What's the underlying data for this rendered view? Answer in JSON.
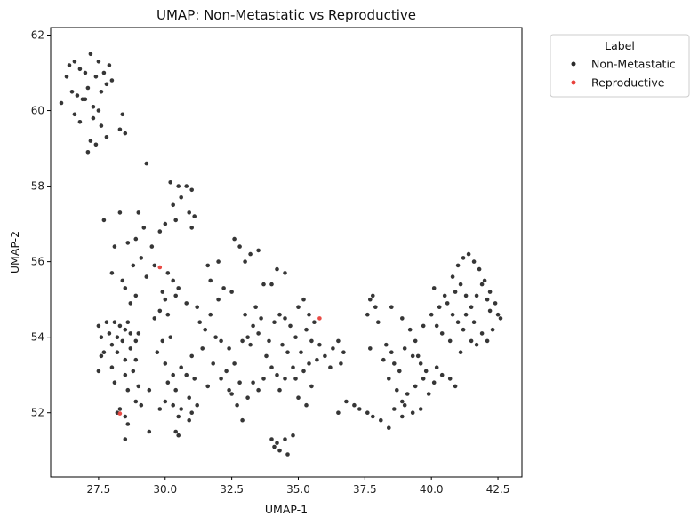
{
  "chart_data": {
    "type": "scatter",
    "title": "UMAP: Non-Metastatic vs Reproductive",
    "xlabel": "UMAP-1",
    "ylabel": "UMAP-2",
    "xlim": [
      25.7,
      43.4
    ],
    "ylim": [
      50.3,
      62.2
    ],
    "xticks": [
      27.5,
      30.0,
      32.5,
      35.0,
      37.5,
      40.0,
      42.5
    ],
    "xtick_labels": [
      "27.5",
      "30.0",
      "32.5",
      "35.0",
      "37.5",
      "40.0",
      "42.5"
    ],
    "yticks": [
      52,
      54,
      56,
      58,
      60,
      62
    ],
    "ytick_labels": [
      "52",
      "54",
      "56",
      "58",
      "60",
      "62"
    ],
    "grid": false,
    "legend": {
      "title": "Label",
      "placement": "outside-top-right",
      "entries": [
        "Non-Metastatic",
        "Reproductive"
      ]
    },
    "series": [
      {
        "name": "Non-Metastatic",
        "color": "#2b2b2b",
        "points": [
          [
            26.1,
            60.2
          ],
          [
            26.3,
            60.9
          ],
          [
            26.4,
            61.2
          ],
          [
            26.5,
            60.5
          ],
          [
            26.6,
            61.3
          ],
          [
            26.7,
            60.4
          ],
          [
            26.8,
            61.1
          ],
          [
            26.9,
            60.3
          ],
          [
            27.0,
            61.0
          ],
          [
            27.1,
            60.6
          ],
          [
            27.2,
            61.5
          ],
          [
            27.3,
            60.1
          ],
          [
            27.4,
            60.9
          ],
          [
            27.5,
            61.3
          ],
          [
            27.6,
            60.5
          ],
          [
            27.7,
            61.0
          ],
          [
            27.8,
            60.7
          ],
          [
            27.9,
            61.2
          ],
          [
            28.0,
            60.8
          ],
          [
            27.5,
            60.0
          ],
          [
            27.3,
            59.8
          ],
          [
            26.6,
            59.9
          ],
          [
            26.8,
            59.7
          ],
          [
            27.2,
            59.2
          ],
          [
            27.4,
            59.1
          ],
          [
            27.1,
            58.9
          ],
          [
            27.8,
            59.3
          ],
          [
            28.3,
            59.5
          ],
          [
            28.4,
            59.9
          ],
          [
            28.5,
            59.4
          ],
          [
            27.6,
            59.6
          ],
          [
            27.0,
            60.3
          ],
          [
            29.3,
            58.6
          ],
          [
            30.2,
            58.1
          ],
          [
            30.5,
            58.0
          ],
          [
            30.8,
            58.0
          ],
          [
            31.0,
            57.9
          ],
          [
            30.6,
            57.7
          ],
          [
            30.3,
            57.5
          ],
          [
            30.9,
            57.3
          ],
          [
            30.4,
            57.1
          ],
          [
            31.1,
            57.2
          ],
          [
            31.0,
            56.9
          ],
          [
            30.0,
            57.0
          ],
          [
            29.8,
            56.8
          ],
          [
            29.2,
            56.9
          ],
          [
            29.0,
            57.3
          ],
          [
            28.3,
            57.3
          ],
          [
            27.7,
            57.1
          ],
          [
            28.9,
            56.6
          ],
          [
            29.1,
            56.1
          ],
          [
            29.3,
            55.6
          ],
          [
            28.6,
            56.5
          ],
          [
            28.8,
            55.9
          ],
          [
            28.4,
            55.5
          ],
          [
            28.1,
            56.4
          ],
          [
            28.0,
            55.7
          ],
          [
            28.9,
            55.1
          ],
          [
            28.7,
            54.9
          ],
          [
            28.5,
            55.3
          ],
          [
            29.5,
            56.4
          ],
          [
            29.6,
            55.9
          ],
          [
            30.1,
            55.7
          ],
          [
            30.3,
            55.5
          ],
          [
            29.9,
            55.2
          ],
          [
            30.5,
            55.3
          ],
          [
            30.0,
            55.0
          ],
          [
            30.4,
            55.1
          ],
          [
            30.8,
            54.9
          ],
          [
            31.2,
            54.8
          ],
          [
            32.0,
            56.0
          ],
          [
            31.6,
            55.9
          ],
          [
            32.6,
            56.6
          ],
          [
            32.8,
            56.4
          ],
          [
            33.2,
            56.2
          ],
          [
            33.5,
            56.3
          ],
          [
            33.0,
            56.0
          ],
          [
            34.2,
            55.8
          ],
          [
            34.5,
            55.7
          ],
          [
            34.0,
            55.4
          ],
          [
            33.7,
            55.4
          ],
          [
            32.2,
            55.3
          ],
          [
            32.5,
            55.2
          ],
          [
            32.0,
            55.0
          ],
          [
            31.7,
            55.5
          ],
          [
            27.5,
            54.3
          ],
          [
            27.8,
            54.4
          ],
          [
            28.1,
            54.4
          ],
          [
            28.3,
            54.3
          ],
          [
            28.5,
            54.2
          ],
          [
            27.9,
            54.1
          ],
          [
            28.2,
            54.0
          ],
          [
            27.6,
            54.0
          ],
          [
            28.6,
            54.4
          ],
          [
            28.0,
            53.8
          ],
          [
            28.4,
            53.9
          ],
          [
            27.7,
            53.6
          ],
          [
            28.2,
            53.6
          ],
          [
            28.7,
            53.7
          ],
          [
            28.9,
            53.4
          ],
          [
            28.5,
            53.4
          ],
          [
            28.0,
            53.2
          ],
          [
            27.6,
            53.5
          ],
          [
            28.8,
            53.1
          ],
          [
            27.5,
            53.1
          ],
          [
            28.5,
            53.0
          ],
          [
            28.1,
            52.8
          ],
          [
            28.6,
            52.6
          ],
          [
            29.0,
            52.7
          ],
          [
            29.4,
            52.6
          ],
          [
            28.9,
            52.3
          ],
          [
            29.1,
            52.2
          ],
          [
            28.5,
            51.9
          ],
          [
            28.3,
            52.1
          ],
          [
            28.2,
            52.0
          ],
          [
            28.6,
            51.7
          ],
          [
            28.5,
            51.3
          ],
          [
            29.4,
            51.5
          ],
          [
            28.9,
            53.9
          ],
          [
            29.0,
            54.1
          ],
          [
            28.7,
            54.1
          ],
          [
            29.7,
            53.6
          ],
          [
            29.9,
            53.9
          ],
          [
            30.2,
            54.0
          ],
          [
            30.0,
            53.3
          ],
          [
            30.3,
            53.0
          ],
          [
            30.6,
            53.2
          ],
          [
            30.1,
            52.8
          ],
          [
            30.8,
            53.0
          ],
          [
            31.1,
            52.9
          ],
          [
            30.4,
            52.6
          ],
          [
            30.9,
            52.4
          ],
          [
            31.2,
            52.2
          ],
          [
            30.6,
            52.1
          ],
          [
            30.3,
            52.2
          ],
          [
            30.0,
            52.3
          ],
          [
            29.8,
            52.1
          ],
          [
            30.5,
            51.9
          ],
          [
            30.9,
            51.8
          ],
          [
            31.0,
            52.0
          ],
          [
            30.4,
            51.5
          ],
          [
            30.5,
            51.4
          ],
          [
            29.6,
            54.5
          ],
          [
            29.8,
            54.7
          ],
          [
            30.1,
            54.6
          ],
          [
            31.3,
            54.4
          ],
          [
            31.5,
            54.2
          ],
          [
            31.0,
            53.5
          ],
          [
            31.4,
            53.7
          ],
          [
            31.7,
            54.6
          ],
          [
            31.9,
            54.0
          ],
          [
            32.1,
            53.9
          ],
          [
            32.4,
            53.7
          ],
          [
            31.8,
            53.3
          ],
          [
            32.3,
            53.1
          ],
          [
            32.6,
            53.3
          ],
          [
            32.1,
            52.9
          ],
          [
            32.8,
            52.8
          ],
          [
            32.5,
            52.5
          ],
          [
            32.7,
            52.2
          ],
          [
            32.4,
            52.6
          ],
          [
            31.6,
            52.7
          ],
          [
            32.9,
            53.9
          ],
          [
            33.1,
            54.0
          ],
          [
            33.3,
            54.3
          ],
          [
            33.0,
            54.6
          ],
          [
            33.4,
            54.8
          ],
          [
            33.6,
            54.5
          ],
          [
            33.5,
            54.1
          ],
          [
            33.2,
            53.8
          ],
          [
            33.8,
            53.5
          ],
          [
            33.9,
            53.9
          ],
          [
            34.1,
            54.4
          ],
          [
            34.3,
            54.6
          ],
          [
            34.5,
            54.5
          ],
          [
            34.7,
            54.3
          ],
          [
            34.9,
            54.0
          ],
          [
            34.4,
            53.8
          ],
          [
            34.6,
            53.6
          ],
          [
            34.0,
            53.2
          ],
          [
            34.2,
            53.0
          ],
          [
            34.8,
            53.2
          ],
          [
            34.5,
            52.9
          ],
          [
            34.3,
            52.6
          ],
          [
            33.7,
            52.9
          ],
          [
            33.5,
            52.6
          ],
          [
            33.3,
            52.8
          ],
          [
            33.1,
            52.4
          ],
          [
            32.9,
            51.8
          ],
          [
            34.0,
            51.3
          ],
          [
            34.2,
            51.2
          ],
          [
            34.5,
            51.3
          ],
          [
            34.8,
            51.4
          ],
          [
            34.3,
            51.0
          ],
          [
            34.6,
            50.9
          ],
          [
            34.1,
            51.1
          ],
          [
            35.2,
            55.0
          ],
          [
            35.0,
            54.8
          ],
          [
            35.4,
            54.6
          ],
          [
            35.6,
            54.4
          ],
          [
            35.3,
            54.2
          ],
          [
            35.5,
            53.9
          ],
          [
            35.8,
            53.8
          ],
          [
            35.1,
            53.6
          ],
          [
            35.4,
            53.3
          ],
          [
            35.7,
            53.4
          ],
          [
            35.2,
            53.1
          ],
          [
            34.9,
            52.9
          ],
          [
            35.5,
            52.7
          ],
          [
            35.0,
            52.4
          ],
          [
            35.3,
            52.2
          ],
          [
            36.0,
            53.5
          ],
          [
            36.3,
            53.7
          ],
          [
            36.5,
            53.9
          ],
          [
            36.7,
            53.6
          ],
          [
            36.6,
            53.3
          ],
          [
            36.2,
            53.2
          ],
          [
            36.8,
            52.3
          ],
          [
            36.5,
            52.0
          ],
          [
            37.1,
            52.2
          ],
          [
            37.3,
            52.1
          ],
          [
            37.6,
            52.0
          ],
          [
            37.8,
            51.9
          ],
          [
            38.1,
            51.8
          ],
          [
            38.4,
            51.6
          ],
          [
            37.8,
            55.1
          ],
          [
            37.7,
            55.0
          ],
          [
            37.9,
            54.8
          ],
          [
            37.6,
            54.6
          ],
          [
            38.0,
            54.4
          ],
          [
            37.7,
            53.7
          ],
          [
            38.3,
            53.8
          ],
          [
            38.5,
            53.6
          ],
          [
            38.2,
            53.4
          ],
          [
            38.6,
            53.3
          ],
          [
            38.8,
            53.1
          ],
          [
            38.4,
            52.9
          ],
          [
            38.7,
            52.6
          ],
          [
            38.9,
            52.3
          ],
          [
            39.1,
            52.5
          ],
          [
            38.6,
            52.1
          ],
          [
            38.9,
            51.9
          ],
          [
            38.5,
            54.8
          ],
          [
            38.9,
            54.5
          ],
          [
            39.2,
            54.2
          ],
          [
            39.4,
            53.9
          ],
          [
            39.0,
            53.7
          ],
          [
            39.3,
            53.5
          ],
          [
            39.6,
            53.3
          ],
          [
            39.8,
            53.1
          ],
          [
            39.5,
            53.5
          ],
          [
            39.7,
            52.9
          ],
          [
            39.4,
            52.7
          ],
          [
            39.9,
            52.5
          ],
          [
            39.6,
            52.1
          ],
          [
            39.3,
            52.0
          ],
          [
            39.0,
            52.2
          ],
          [
            40.1,
            52.8
          ],
          [
            40.4,
            53.0
          ],
          [
            40.7,
            52.9
          ],
          [
            40.2,
            53.2
          ],
          [
            40.9,
            52.7
          ],
          [
            39.7,
            54.3
          ],
          [
            40.0,
            54.6
          ],
          [
            40.3,
            54.8
          ],
          [
            40.1,
            55.3
          ],
          [
            40.5,
            55.1
          ],
          [
            40.8,
            55.6
          ],
          [
            41.0,
            55.9
          ],
          [
            41.2,
            56.1
          ],
          [
            41.4,
            56.2
          ],
          [
            41.6,
            56.0
          ],
          [
            41.8,
            55.8
          ],
          [
            42.0,
            55.5
          ],
          [
            42.2,
            55.2
          ],
          [
            42.4,
            54.9
          ],
          [
            42.5,
            54.6
          ],
          [
            42.6,
            54.5
          ],
          [
            42.3,
            54.2
          ],
          [
            42.1,
            53.9
          ],
          [
            41.9,
            54.1
          ],
          [
            41.7,
            53.8
          ],
          [
            41.5,
            53.9
          ],
          [
            41.2,
            54.2
          ],
          [
            41.0,
            54.4
          ],
          [
            40.8,
            54.6
          ],
          [
            40.6,
            54.9
          ],
          [
            40.9,
            55.2
          ],
          [
            41.1,
            55.4
          ],
          [
            41.3,
            55.1
          ],
          [
            41.5,
            54.8
          ],
          [
            41.7,
            55.1
          ],
          [
            41.9,
            55.4
          ],
          [
            42.1,
            55.0
          ],
          [
            41.3,
            54.6
          ],
          [
            41.6,
            54.4
          ],
          [
            42.2,
            54.7
          ],
          [
            40.7,
            53.9
          ],
          [
            41.1,
            53.6
          ],
          [
            40.4,
            54.1
          ],
          [
            40.2,
            54.3
          ]
        ]
      },
      {
        "name": "Reproductive",
        "color": "#e8413b",
        "points": [
          [
            29.8,
            55.85
          ],
          [
            35.8,
            54.5
          ],
          [
            28.3,
            51.98
          ]
        ]
      }
    ]
  }
}
